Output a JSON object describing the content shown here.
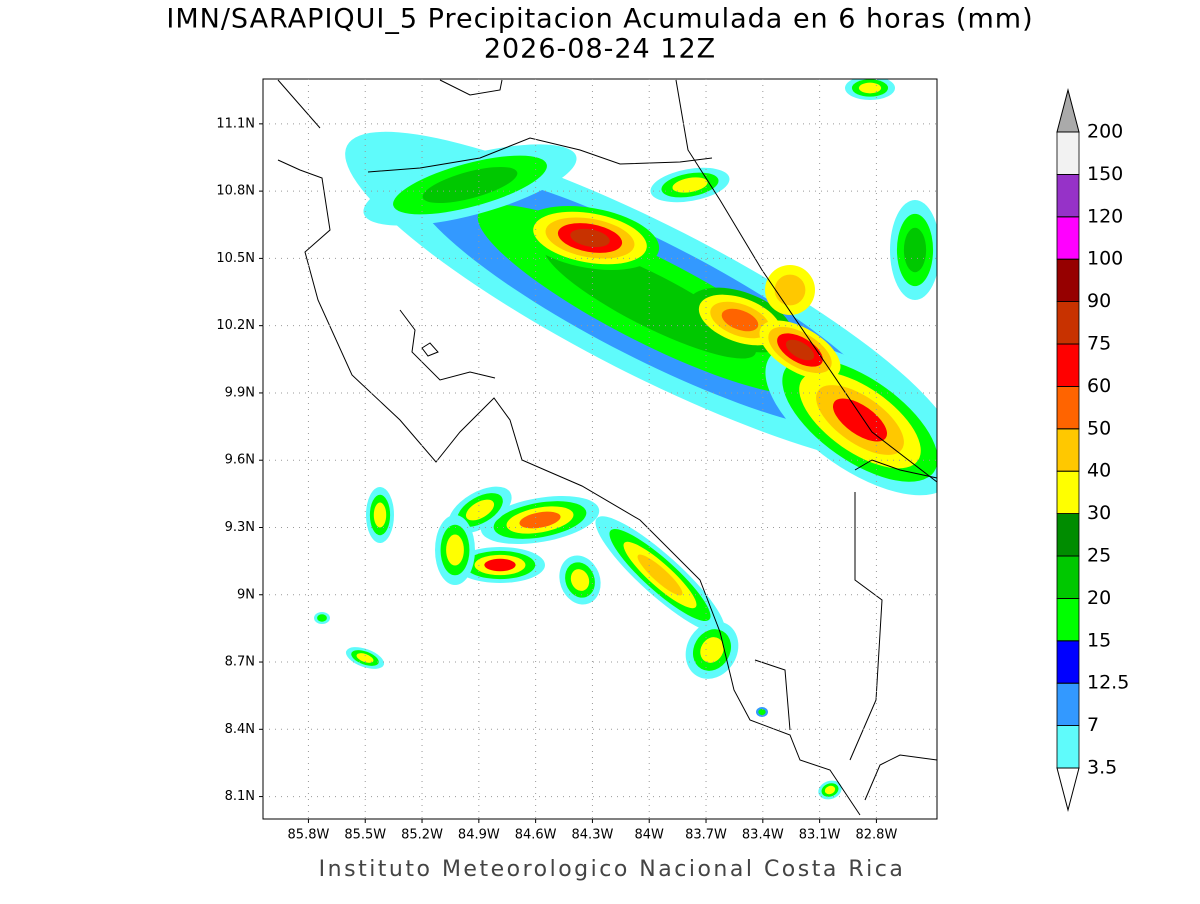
{
  "chart_data": {
    "type": "map",
    "title": "IMN/SARAPIQUI_5 Precipitacion Acumulada en 6 horas (mm)",
    "subtitle": "2026-08-24 12Z",
    "footer": "Instituto Meteorologico Nacional Costa Rica",
    "xlim": [
      -86.04,
      -82.48
    ],
    "ylim": [
      8.0,
      11.3
    ],
    "xticks": [
      {
        "value": -85.8,
        "label": "85.8W"
      },
      {
        "value": -85.5,
        "label": "85.5W"
      },
      {
        "value": -85.2,
        "label": "85.2W"
      },
      {
        "value": -84.9,
        "label": "84.9W"
      },
      {
        "value": -84.6,
        "label": "84.6W"
      },
      {
        "value": -84.3,
        "label": "84.3W"
      },
      {
        "value": -84.0,
        "label": "84W"
      },
      {
        "value": -83.7,
        "label": "83.7W"
      },
      {
        "value": -83.4,
        "label": "83.4W"
      },
      {
        "value": -83.1,
        "label": "83.1W"
      },
      {
        "value": -82.8,
        "label": "82.8W"
      }
    ],
    "yticks": [
      {
        "value": 8.1,
        "label": "8.1N"
      },
      {
        "value": 8.4,
        "label": "8.4N"
      },
      {
        "value": 8.7,
        "label": "8.7N"
      },
      {
        "value": 9.0,
        "label": "9N"
      },
      {
        "value": 9.3,
        "label": "9.3N"
      },
      {
        "value": 9.6,
        "label": "9.6N"
      },
      {
        "value": 9.9,
        "label": "9.9N"
      },
      {
        "value": 10.2,
        "label": "10.2N"
      },
      {
        "value": 10.5,
        "label": "10.5N"
      },
      {
        "value": 10.8,
        "label": "10.8N"
      },
      {
        "value": 11.1,
        "label": "11.1N"
      }
    ],
    "grid": true,
    "colorbar": {
      "levels": [
        3.5,
        7,
        12.5,
        15,
        20,
        25,
        30,
        40,
        50,
        60,
        75,
        90,
        100,
        120,
        150,
        200
      ],
      "colors": [
        "#ffffff",
        "#5ffbfb",
        "#3399ff",
        "#0000ff",
        "#00ff00",
        "#00c800",
        "#008c00",
        "#ffff00",
        "#ffc800",
        "#ff6400",
        "#ff0000",
        "#c83200",
        "#960000",
        "#ff00ff",
        "#9632c8",
        "#f2f2f2",
        "#aaaaaa"
      ]
    }
  }
}
